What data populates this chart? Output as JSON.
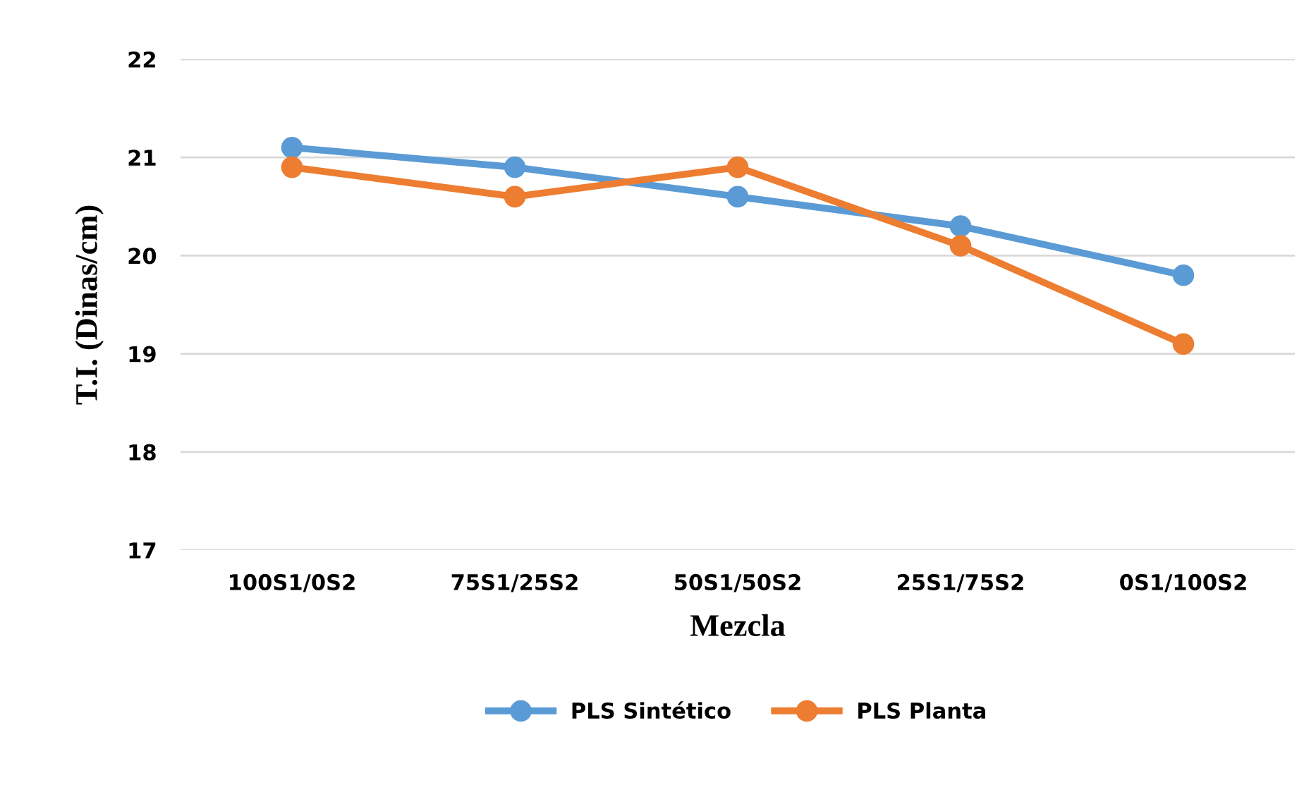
{
  "chart_data": {
    "type": "line",
    "xlabel": "Mezcla",
    "ylabel": "T.I. (Dinas/cm)",
    "categories": [
      "100S1/0S2",
      "75S1/25S2",
      "50S1/50S2",
      "25S1/75S2",
      "0S1/100S2"
    ],
    "series": [
      {
        "name": "PLS Sintético",
        "color": "#5b9bd5",
        "values": [
          21.1,
          20.9,
          20.6,
          20.3,
          19.8
        ]
      },
      {
        "name": "PLS Planta",
        "color": "#ed7d31",
        "values": [
          20.9,
          20.6,
          20.9,
          20.1,
          19.1
        ]
      }
    ],
    "ylim": [
      17,
      22
    ],
    "yticks": [
      17,
      18,
      19,
      20,
      21,
      22
    ],
    "grid": "y",
    "legend": "bottom",
    "marker": "circle",
    "line_style": "solid"
  }
}
